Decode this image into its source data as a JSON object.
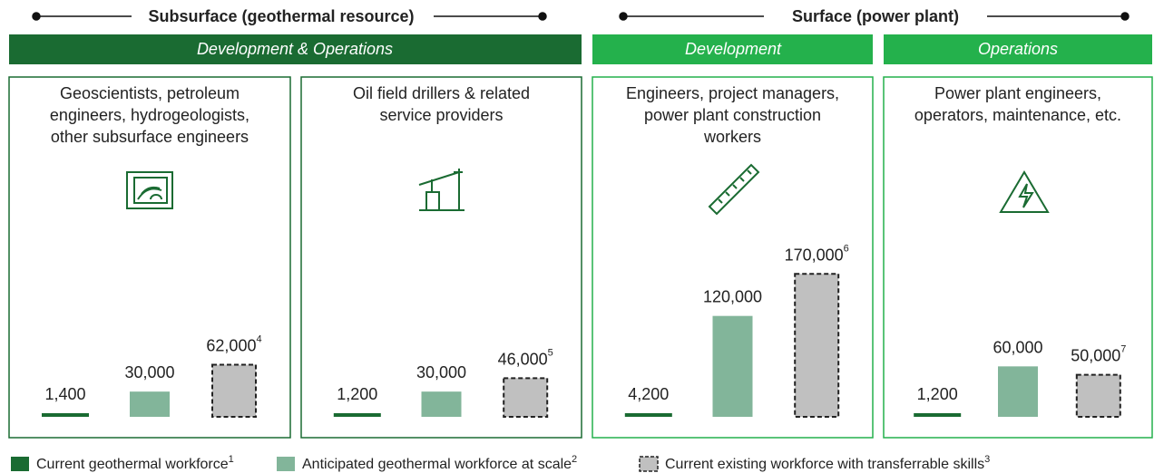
{
  "headers": [
    "Subsurface (geothermal resource)",
    "Surface (power plant)"
  ],
  "banners": [
    "Development & Operations",
    "Development",
    "Operations"
  ],
  "legend": [
    {
      "name": "Current geothermal workforce",
      "note": "1",
      "color": "#1a6b32"
    },
    {
      "name": "Anticipated geothermal workforce at scale",
      "note": "2",
      "color": "#82b59a"
    },
    {
      "name": "Current existing workforce with transferrable skills",
      "note": "3",
      "color": "#c0c0c0"
    }
  ],
  "chart_data": [
    {
      "type": "bar",
      "title": [
        "Geoscientists, petroleum",
        "engineers, hydrogeologists,",
        "other subsurface engineers"
      ],
      "values": [
        1400,
        30000,
        62000
      ],
      "value_labels": [
        "1,400",
        "30,000",
        "62,000"
      ],
      "notes": [
        null,
        null,
        "4"
      ],
      "ylim": [
        0,
        180000
      ]
    },
    {
      "type": "bar",
      "title": [
        "Oil field drillers & related",
        "service providers"
      ],
      "values": [
        1200,
        30000,
        46000
      ],
      "value_labels": [
        "1,200",
        "30,000",
        "46,000"
      ],
      "notes": [
        null,
        null,
        "5"
      ],
      "ylim": [
        0,
        180000
      ]
    },
    {
      "type": "bar",
      "title": [
        "Engineers, project managers,",
        "power plant construction",
        "workers"
      ],
      "values": [
        4200,
        120000,
        170000
      ],
      "value_labels": [
        "4,200",
        "120,000",
        "170,000"
      ],
      "notes": [
        null,
        null,
        "6"
      ],
      "ylim": [
        0,
        180000
      ]
    },
    {
      "type": "bar",
      "title": [
        "Power plant engineers,",
        "operators, maintenance, etc."
      ],
      "values": [
        1200,
        60000,
        50000
      ],
      "value_labels": [
        "1,200",
        "60,000",
        "50,000"
      ],
      "notes": [
        null,
        null,
        "7"
      ],
      "ylim": [
        0,
        180000
      ]
    }
  ]
}
